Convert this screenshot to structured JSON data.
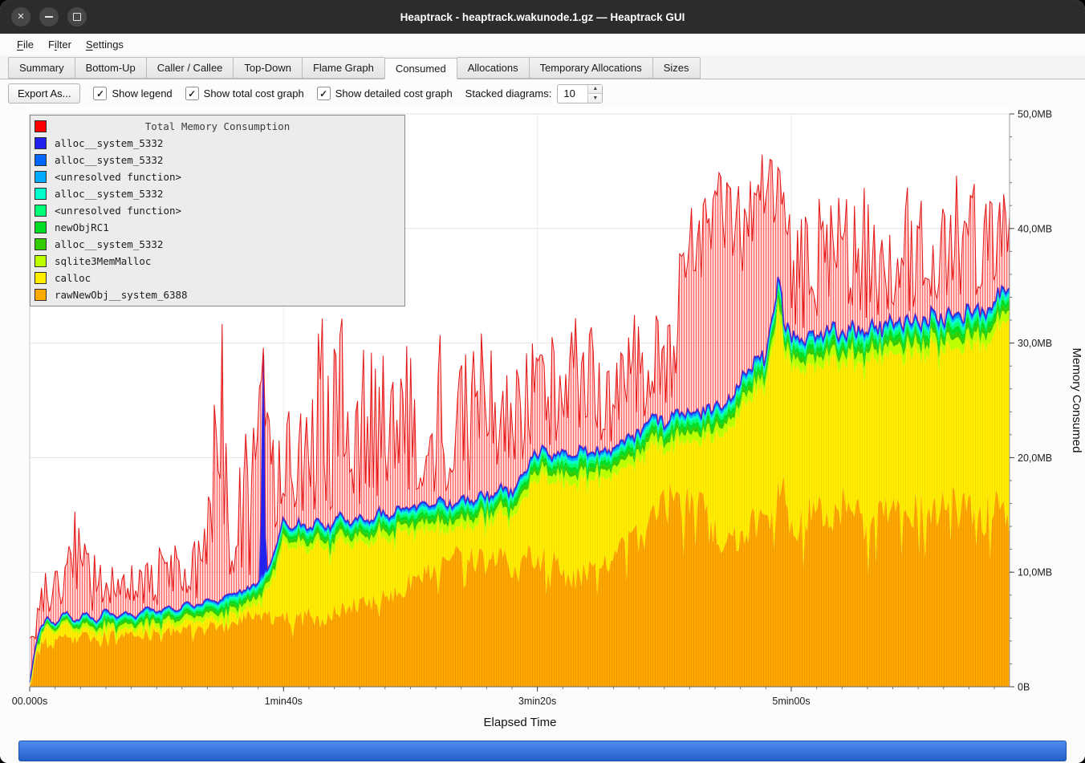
{
  "window": {
    "title": "Heaptrack - heaptrack.wakunode.1.gz — Heaptrack GUI",
    "controls": [
      "close",
      "minimize",
      "maximize"
    ]
  },
  "menubar": {
    "items": [
      {
        "label": "File",
        "underline": 0
      },
      {
        "label": "Filter",
        "underline": 1
      },
      {
        "label": "Settings",
        "underline": 0
      }
    ]
  },
  "tabs": {
    "items": [
      "Summary",
      "Bottom-Up",
      "Caller / Callee",
      "Top-Down",
      "Flame Graph",
      "Consumed",
      "Allocations",
      "Temporary Allocations",
      "Sizes"
    ],
    "active": "Consumed"
  },
  "toolbar": {
    "export_label": "Export As...",
    "checkboxes": [
      {
        "label": "Show legend",
        "checked": true
      },
      {
        "label": "Show total cost graph",
        "checked": true
      },
      {
        "label": "Show detailed cost graph",
        "checked": true
      }
    ],
    "stacked_label": "Stacked diagrams:",
    "stacked_value": "10"
  },
  "chart_data": {
    "type": "area",
    "stacked": true,
    "title": "Total Memory Consumption",
    "xlabel": "Elapsed Time",
    "ylabel": "Memory Consumed",
    "ylim": [
      0,
      50
    ],
    "t_max": 386,
    "grid": true,
    "legend_position": "top-left",
    "x_ticks": [
      [
        0,
        "00.000s"
      ],
      [
        100,
        "1min40s"
      ],
      [
        200,
        "3min20s"
      ],
      [
        300,
        "5min00s"
      ]
    ],
    "y_ticks": [
      [
        0,
        "0B"
      ],
      [
        10,
        "10,0MB"
      ],
      [
        20,
        "20,0MB"
      ],
      [
        30,
        "30,0MB"
      ],
      [
        40,
        "40,0MB"
      ],
      [
        50,
        "50,0MB"
      ]
    ],
    "legend": [
      {
        "label": "Total Memory Consumption",
        "color": "#ff0000",
        "title": true
      },
      {
        "label": "alloc__system_5332",
        "color": "#2222ee"
      },
      {
        "label": "alloc__system_5332",
        "color": "#0066ff"
      },
      {
        "label": "<unresolved function>",
        "color": "#00aaff"
      },
      {
        "label": "alloc__system_5332",
        "color": "#00ffcc"
      },
      {
        "label": "<unresolved function>",
        "color": "#00ff77"
      },
      {
        "label": "newObjRC1",
        "color": "#00dd22"
      },
      {
        "label": "alloc__system_5332",
        "color": "#33cc00"
      },
      {
        "label": "sqlite3MemMalloc",
        "color": "#bbff00"
      },
      {
        "label": "calloc",
        "color": "#ffee00"
      },
      {
        "label": "rawNewObj__system_6388",
        "color": "#ffaa00"
      }
    ],
    "noise_seed": 20240,
    "samples": 500,
    "red_dense_ranges": [
      [
        256,
        300
      ]
    ],
    "series": {
      "colors": {
        "orange": "#ffaa00",
        "yellow": "#ffee00",
        "blue_line": "#2222ee",
        "red": "#ff0000"
      },
      "band_fractions": [
        0.3,
        0.16,
        0.16,
        0.12,
        0.1,
        0.08,
        0.08
      ],
      "band_colors": [
        "#bbff00",
        "#33cc00",
        "#00dd22",
        "#00ff77",
        "#00ffcc",
        "#00aaff",
        "#0066ff"
      ],
      "orange_kp": [
        [
          0,
          0.2
        ],
        [
          2,
          2.5
        ],
        [
          5,
          4.2
        ],
        [
          8,
          3.6
        ],
        [
          12,
          4.6
        ],
        [
          16,
          4.0
        ],
        [
          20,
          5.0
        ],
        [
          25,
          4.2
        ],
        [
          30,
          5.0
        ],
        [
          35,
          4.4
        ],
        [
          40,
          5.2
        ],
        [
          45,
          4.6
        ],
        [
          50,
          5.0
        ],
        [
          55,
          4.7
        ],
        [
          60,
          5.3
        ],
        [
          65,
          5.0
        ],
        [
          70,
          5.5
        ],
        [
          75,
          5.2
        ],
        [
          80,
          5.8
        ],
        [
          85,
          6.0
        ],
        [
          90,
          6.2
        ],
        [
          95,
          6.0
        ],
        [
          100,
          6.4
        ],
        [
          105,
          5.8
        ],
        [
          110,
          6.2
        ],
        [
          115,
          5.6
        ],
        [
          120,
          6.5
        ],
        [
          125,
          6.8
        ],
        [
          130,
          7.2
        ],
        [
          135,
          7.6
        ],
        [
          140,
          8.0
        ],
        [
          145,
          8.4
        ],
        [
          150,
          9.0
        ],
        [
          155,
          9.6
        ],
        [
          160,
          10.4
        ],
        [
          165,
          11.0
        ],
        [
          170,
          11.4
        ],
        [
          175,
          11.2
        ],
        [
          180,
          10.8
        ],
        [
          185,
          11.2
        ],
        [
          190,
          10.6
        ],
        [
          195,
          11.0
        ],
        [
          200,
          11.4
        ],
        [
          205,
          11.0
        ],
        [
          210,
          10.0
        ],
        [
          215,
          9.6
        ],
        [
          220,
          10.2
        ],
        [
          225,
          10.8
        ],
        [
          230,
          11.4
        ],
        [
          235,
          12.0
        ],
        [
          240,
          13.0
        ],
        [
          245,
          14.4
        ],
        [
          250,
          15.6
        ],
        [
          255,
          16.4
        ],
        [
          258,
          16.0
        ],
        [
          262,
          16.6
        ],
        [
          265,
          15.8
        ],
        [
          268,
          14.0
        ],
        [
          272,
          13.0
        ],
        [
          276,
          12.6
        ],
        [
          280,
          13.0
        ],
        [
          284,
          14.0
        ],
        [
          288,
          14.6
        ],
        [
          292,
          14.0
        ],
        [
          294,
          15.0
        ],
        [
          296,
          19.5
        ],
        [
          298,
          14.6
        ],
        [
          302,
          14.0
        ],
        [
          306,
          15.0
        ],
        [
          310,
          15.6
        ],
        [
          314,
          14.6
        ],
        [
          318,
          15.4
        ],
        [
          322,
          16.0
        ],
        [
          326,
          14.8
        ],
        [
          330,
          14.0
        ],
        [
          334,
          15.0
        ],
        [
          338,
          16.0
        ],
        [
          342,
          15.0
        ],
        [
          346,
          16.2
        ],
        [
          350,
          15.0
        ],
        [
          354,
          16.0
        ],
        [
          358,
          15.2
        ],
        [
          362,
          16.4
        ],
        [
          366,
          15.0
        ],
        [
          370,
          16.0
        ],
        [
          374,
          14.6
        ],
        [
          378,
          15.6
        ],
        [
          382,
          16.2
        ],
        [
          386,
          14.5
        ]
      ],
      "stack_kp": [
        [
          0,
          0.4
        ],
        [
          2,
          3.2
        ],
        [
          4,
          5.0
        ],
        [
          7,
          6.0
        ],
        [
          10,
          5.4
        ],
        [
          14,
          6.6
        ],
        [
          18,
          5.6
        ],
        [
          22,
          6.6
        ],
        [
          26,
          5.6
        ],
        [
          30,
          6.8
        ],
        [
          34,
          6.0
        ],
        [
          38,
          6.6
        ],
        [
          42,
          6.0
        ],
        [
          46,
          7.0
        ],
        [
          50,
          6.4
        ],
        [
          54,
          7.0
        ],
        [
          58,
          6.6
        ],
        [
          62,
          7.4
        ],
        [
          66,
          7.0
        ],
        [
          70,
          7.6
        ],
        [
          74,
          7.2
        ],
        [
          78,
          8.0
        ],
        [
          82,
          8.2
        ],
        [
          86,
          8.6
        ],
        [
          90,
          9.2
        ],
        [
          94,
          10.4
        ],
        [
          98,
          13.0
        ],
        [
          100,
          14.6
        ],
        [
          103,
          13.8
        ],
        [
          106,
          14.4
        ],
        [
          110,
          13.6
        ],
        [
          114,
          14.6
        ],
        [
          118,
          13.8
        ],
        [
          122,
          15.0
        ],
        [
          126,
          14.2
        ],
        [
          130,
          15.0
        ],
        [
          134,
          14.4
        ],
        [
          138,
          15.4
        ],
        [
          142,
          14.8
        ],
        [
          146,
          15.8
        ],
        [
          150,
          15.2
        ],
        [
          154,
          16.2
        ],
        [
          158,
          15.6
        ],
        [
          162,
          16.4
        ],
        [
          166,
          15.8
        ],
        [
          170,
          16.6
        ],
        [
          174,
          16.0
        ],
        [
          178,
          17.0
        ],
        [
          182,
          16.4
        ],
        [
          186,
          17.4
        ],
        [
          190,
          16.8
        ],
        [
          194,
          18.4
        ],
        [
          198,
          20.0
        ],
        [
          202,
          20.8
        ],
        [
          206,
          20.2
        ],
        [
          210,
          21.0
        ],
        [
          214,
          20.2
        ],
        [
          218,
          20.8
        ],
        [
          222,
          20.2
        ],
        [
          226,
          21.0
        ],
        [
          230,
          20.6
        ],
        [
          234,
          21.4
        ],
        [
          238,
          21.8
        ],
        [
          242,
          22.6
        ],
        [
          246,
          23.4
        ],
        [
          250,
          23.0
        ],
        [
          254,
          24.0
        ],
        [
          258,
          23.4
        ],
        [
          262,
          24.4
        ],
        [
          266,
          23.8
        ],
        [
          270,
          24.8
        ],
        [
          274,
          24.2
        ],
        [
          278,
          26.0
        ],
        [
          282,
          27.6
        ],
        [
          286,
          28.4
        ],
        [
          290,
          28.8
        ],
        [
          293,
          33.0
        ],
        [
          295,
          36.2
        ],
        [
          297,
          32.0
        ],
        [
          300,
          30.6
        ],
        [
          304,
          30.0
        ],
        [
          308,
          31.0
        ],
        [
          312,
          30.4
        ],
        [
          316,
          31.2
        ],
        [
          320,
          30.6
        ],
        [
          324,
          31.4
        ],
        [
          328,
          30.8
        ],
        [
          332,
          31.6
        ],
        [
          336,
          31.0
        ],
        [
          340,
          32.0
        ],
        [
          344,
          31.4
        ],
        [
          348,
          32.4
        ],
        [
          352,
          31.8
        ],
        [
          356,
          32.6
        ],
        [
          360,
          32.0
        ],
        [
          364,
          33.0
        ],
        [
          368,
          32.4
        ],
        [
          372,
          33.4
        ],
        [
          376,
          32.8
        ],
        [
          380,
          34.0
        ],
        [
          383,
          34.6
        ],
        [
          386,
          35.6
        ]
      ],
      "band_kp": [
        [
          0,
          0.6
        ],
        [
          20,
          1.1
        ],
        [
          50,
          1.3
        ],
        [
          100,
          1.9
        ],
        [
          150,
          2.1
        ],
        [
          200,
          2.3
        ],
        [
          250,
          2.5
        ],
        [
          300,
          2.7
        ],
        [
          386,
          2.9
        ]
      ],
      "stack_spikes": [
        [
          92,
          29
        ]
      ],
      "red_hi_kp": [
        [
          0,
          5
        ],
        [
          4,
          8
        ],
        [
          8,
          12
        ],
        [
          12,
          10
        ],
        [
          16,
          13
        ],
        [
          19,
          17
        ],
        [
          22,
          12
        ],
        [
          26,
          14
        ],
        [
          30,
          11
        ],
        [
          34,
          14
        ],
        [
          38,
          10
        ],
        [
          42,
          13
        ],
        [
          46,
          11
        ],
        [
          50,
          13
        ],
        [
          54,
          11
        ],
        [
          58,
          13
        ],
        [
          62,
          12
        ],
        [
          66,
          14
        ],
        [
          70,
          18
        ],
        [
          73,
          26
        ],
        [
          76,
          33
        ],
        [
          79,
          25
        ],
        [
          82,
          22
        ],
        [
          86,
          24
        ],
        [
          90,
          29
        ],
        [
          93,
          25
        ],
        [
          96,
          23
        ],
        [
          100,
          22
        ],
        [
          104,
          26
        ],
        [
          108,
          23
        ],
        [
          112,
          30
        ],
        [
          115,
          33
        ],
        [
          118,
          28
        ],
        [
          122,
          35
        ],
        [
          126,
          30
        ],
        [
          130,
          27
        ],
        [
          133,
          34
        ],
        [
          136,
          29
        ],
        [
          140,
          31
        ],
        [
          144,
          27
        ],
        [
          148,
          31
        ],
        [
          152,
          28
        ],
        [
          155,
          33
        ],
        [
          158,
          29
        ],
        [
          162,
          31
        ],
        [
          166,
          28
        ],
        [
          170,
          31
        ],
        [
          174,
          28
        ],
        [
          179,
          36
        ],
        [
          183,
          30
        ],
        [
          187,
          28
        ],
        [
          190,
          30
        ],
        [
          194,
          28
        ],
        [
          198,
          31
        ],
        [
          202,
          29
        ],
        [
          206,
          32
        ],
        [
          210,
          29
        ],
        [
          214,
          33
        ],
        [
          218,
          30
        ],
        [
          222,
          32
        ],
        [
          226,
          29
        ],
        [
          230,
          32
        ],
        [
          234,
          30
        ],
        [
          238,
          33
        ],
        [
          242,
          31
        ],
        [
          246,
          34
        ],
        [
          250,
          32
        ],
        [
          254,
          35
        ],
        [
          257,
          40
        ],
        [
          260,
          45
        ],
        [
          263,
          43
        ],
        [
          266,
          45
        ],
        [
          269,
          43
        ],
        [
          272,
          46
        ],
        [
          275,
          44
        ],
        [
          278,
          46
        ],
        [
          281,
          43
        ],
        [
          284,
          45
        ],
        [
          287,
          46
        ],
        [
          290,
          47
        ],
        [
          293,
          46
        ],
        [
          296,
          45
        ],
        [
          299,
          42
        ],
        [
          302,
          40
        ],
        [
          305,
          43
        ],
        [
          308,
          40
        ],
        [
          311,
          44
        ],
        [
          314,
          41
        ],
        [
          317,
          45
        ],
        [
          320,
          42
        ],
        [
          323,
          45
        ],
        [
          326,
          42
        ],
        [
          329,
          46
        ],
        [
          332,
          41
        ],
        [
          335,
          44
        ],
        [
          338,
          41
        ],
        [
          341,
          45
        ],
        [
          344,
          42
        ],
        [
          347,
          45
        ],
        [
          350,
          42
        ],
        [
          353,
          45
        ],
        [
          356,
          41
        ],
        [
          359,
          44
        ],
        [
          362,
          41
        ],
        [
          365,
          45
        ],
        [
          368,
          42
        ],
        [
          371,
          45
        ],
        [
          374,
          42
        ],
        [
          377,
          45
        ],
        [
          380,
          43
        ],
        [
          383,
          45
        ],
        [
          386,
          45
        ]
      ]
    }
  }
}
